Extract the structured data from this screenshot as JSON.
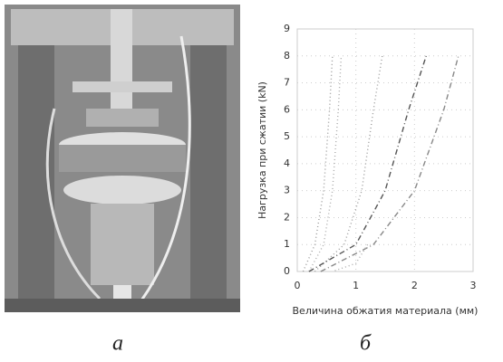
{
  "captions": [
    "а",
    "б"
  ],
  "chart_data": {
    "type": "line",
    "xlabel": "Величина обжатия материала (мм)",
    "ylabel": "Нагрузка при сжатии (kN)",
    "xlim": [
      0,
      3
    ],
    "xticks": [
      0,
      1,
      2,
      3
    ],
    "ylim": [
      0,
      9
    ],
    "yticks": [
      0,
      1,
      2,
      3,
      4,
      5,
      6,
      7,
      8,
      9
    ],
    "grid": true,
    "series": [
      {
        "color": "#999",
        "style": "dotted",
        "x": [
          0.1,
          0.3,
          0.45,
          0.55,
          0.6
        ],
        "values": [
          0,
          1,
          3,
          6,
          8
        ]
      },
      {
        "color": "#aaa",
        "style": "dotted",
        "x": [
          0.2,
          0.45,
          0.6,
          0.7,
          0.75
        ],
        "values": [
          0,
          1,
          3,
          6,
          8
        ]
      },
      {
        "color": "#999",
        "style": "dotted",
        "x": [
          0.3,
          0.8,
          1.1,
          1.3,
          1.45
        ],
        "values": [
          0,
          1,
          3,
          6,
          8
        ]
      },
      {
        "color": "#555",
        "style": "dashdot",
        "x": [
          0.2,
          1.0,
          1.5,
          1.9,
          2.2
        ],
        "values": [
          0,
          1,
          3,
          6,
          8
        ]
      },
      {
        "color": "#888",
        "style": "dashdot",
        "x": [
          0.4,
          1.3,
          2.0,
          2.5,
          2.75
        ],
        "values": [
          0,
          1,
          3,
          6,
          8
        ]
      },
      {
        "color": "#aaa",
        "style": "dotted",
        "x": [
          1.2,
          1.0,
          0.6
        ],
        "values": [
          1,
          0.3,
          0
        ]
      }
    ]
  }
}
